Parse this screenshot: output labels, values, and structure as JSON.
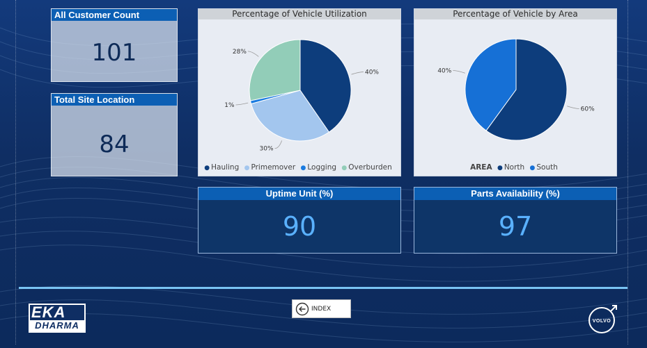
{
  "kpis": {
    "customer_count": {
      "label": "All Customer Count",
      "value": "101"
    },
    "site_location": {
      "label": "Total Site Location",
      "value": "84"
    },
    "uptime": {
      "label": "Uptime Unit (%)",
      "value": "90"
    },
    "parts": {
      "label": "Parts Availability (%)",
      "value": "97"
    }
  },
  "chart_utilization": {
    "title": "Percentage of Vehicle Utilization",
    "legend": [
      "Hauling",
      "Primemover",
      "Logging",
      "Overburden"
    ]
  },
  "chart_area": {
    "title": "Percentage of Vehicle by Area",
    "legend_title": "AREA",
    "legend": [
      "North",
      "South"
    ]
  },
  "chart_data": [
    {
      "type": "pie",
      "title": "Percentage of Vehicle Utilization",
      "categories": [
        "Hauling",
        "Primemover",
        "Logging",
        "Overburden"
      ],
      "values": [
        40,
        30,
        1,
        28
      ],
      "labels": [
        "40%",
        "30%",
        "1%",
        "28%"
      ],
      "colors": [
        "#0d3d7c",
        "#a3c6ee",
        "#1a7be0",
        "#92cdb8"
      ],
      "legend": "bottom"
    },
    {
      "type": "pie",
      "title": "Percentage of Vehicle by Area",
      "categories": [
        "North",
        "South"
      ],
      "values": [
        60,
        40
      ],
      "labels": [
        "60%",
        "40%"
      ],
      "colors": [
        "#0d3d7c",
        "#1670d6"
      ],
      "legend": "bottom"
    }
  ],
  "nav": {
    "index_label": "INDEX"
  },
  "logos": {
    "eka_line1": "EKA",
    "eka_line2": "DHARMA",
    "volvo": "VOLVO"
  }
}
